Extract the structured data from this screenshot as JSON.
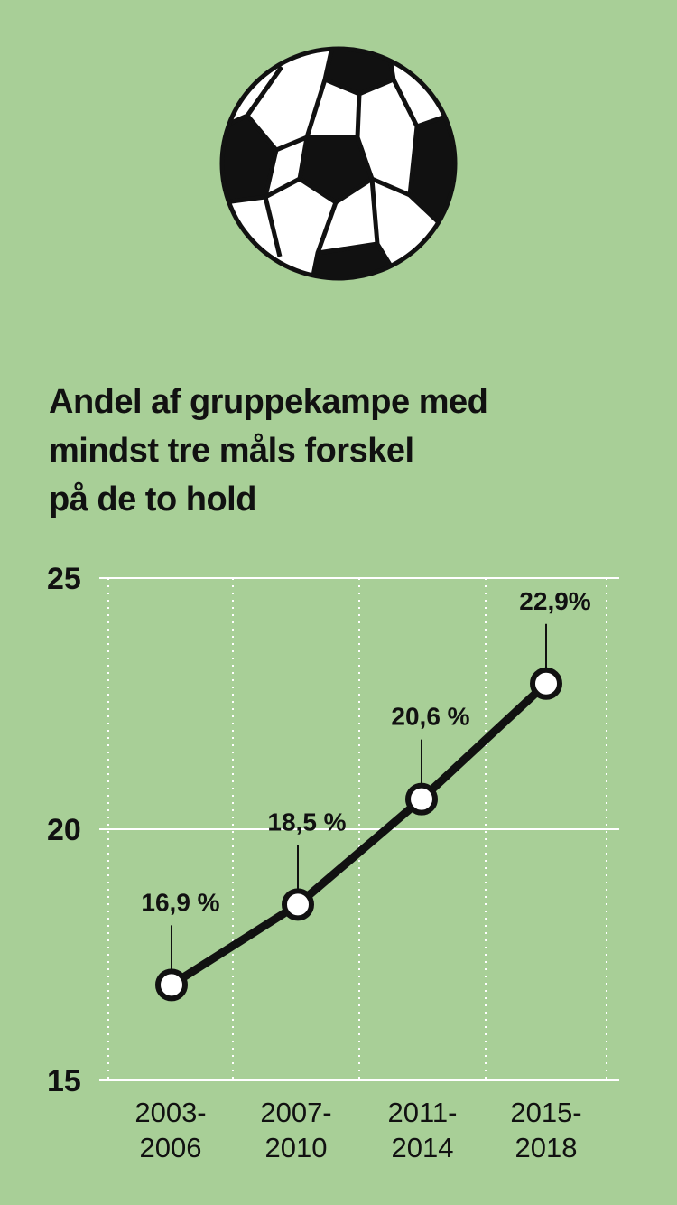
{
  "title_lines": [
    "Andel af gruppekampe med",
    "mindst tre måls forskel",
    "på de to hold"
  ],
  "chart_data": {
    "type": "line",
    "title": "Andel af gruppekampe med mindst tre måls forskel på de to hold",
    "categories": [
      [
        "2003-",
        "2006"
      ],
      [
        "2007-",
        "2010"
      ],
      [
        "2011-",
        "2014"
      ],
      [
        "2015-",
        "2018"
      ]
    ],
    "series": [
      {
        "values": [
          16.9,
          18.5,
          20.6,
          22.9
        ]
      }
    ],
    "data_labels": [
      "16,9 %",
      "18,5 %",
      "20,6 %",
      "22,9%"
    ],
    "ylim": [
      15,
      25
    ],
    "yticks": [
      15,
      20,
      25
    ],
    "ytick_labels": [
      "15",
      "20",
      "25"
    ],
    "grid": true,
    "colors": {
      "background": "#a8cf97",
      "line": "#111111",
      "marker_fill": "#ffffff",
      "grid": "#ffffff"
    }
  },
  "illustration": {
    "icon": "soccer-ball-icon"
  }
}
